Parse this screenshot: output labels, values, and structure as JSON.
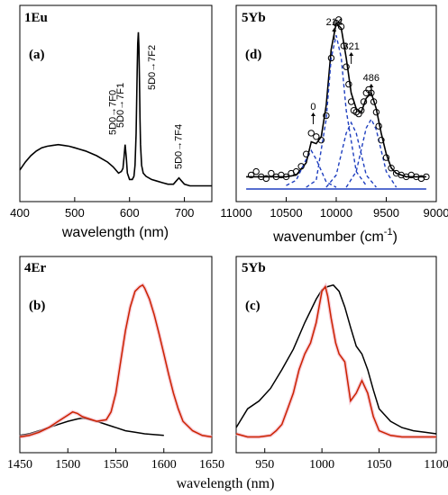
{
  "chart_data": [
    {
      "id": "a",
      "type": "line",
      "title": "1Eu",
      "panel_label": "(a)",
      "xlabel": "wavelength (nm)",
      "xlim": [
        400,
        750
      ],
      "ylim": [
        0,
        1
      ],
      "xticks": [
        400,
        500,
        600,
        700
      ],
      "annotations": [
        {
          "text": "5D0→7F0",
          "x": 578
        },
        {
          "text": "5D0→7F1",
          "x": 592
        },
        {
          "text": "5D0→7F2",
          "x": 650
        },
        {
          "text": "5D0→7F4",
          "x": 698
        }
      ],
      "series": [
        {
          "color": "#000000",
          "x": [
            400,
            410,
            420,
            430,
            440,
            450,
            460,
            470,
            480,
            490,
            500,
            510,
            520,
            530,
            540,
            550,
            560,
            570,
            575,
            580,
            585,
            588,
            590,
            592,
            594,
            596,
            600,
            605,
            608,
            610,
            612,
            614,
            615,
            616,
            617,
            618,
            619,
            620,
            622,
            625,
            630,
            640,
            650,
            660,
            670,
            680,
            685,
            690,
            695,
            700,
            710,
            720,
            730,
            740,
            750
          ],
          "y": [
            0.12,
            0.17,
            0.21,
            0.24,
            0.26,
            0.27,
            0.275,
            0.28,
            0.275,
            0.27,
            0.26,
            0.25,
            0.24,
            0.225,
            0.21,
            0.19,
            0.17,
            0.14,
            0.12,
            0.1,
            0.11,
            0.13,
            0.2,
            0.28,
            0.2,
            0.1,
            0.06,
            0.06,
            0.08,
            0.15,
            0.35,
            0.75,
            0.92,
            0.99,
            0.9,
            0.7,
            0.45,
            0.28,
            0.15,
            0.1,
            0.08,
            0.06,
            0.05,
            0.04,
            0.03,
            0.03,
            0.05,
            0.07,
            0.05,
            0.03,
            0.02,
            0.02,
            0.02,
            0.02,
            0.02
          ]
        }
      ]
    },
    {
      "id": "d",
      "type": "scatter",
      "title": "5Yb",
      "panel_label": "(d)",
      "xlabel": "wavenumber (cm",
      "xlabel_sup": "-1",
      "xlabel_end": ")",
      "xlim": [
        11000,
        9000
      ],
      "ylim": [
        0,
        1
      ],
      "xticks": [
        11000,
        10500,
        10000,
        9500,
        9000
      ],
      "peak_labels": [
        {
          "text": "0",
          "x": 10230
        },
        {
          "text": "214",
          "x": 10020
        },
        {
          "text": "321",
          "x": 9850
        },
        {
          "text": "486",
          "x": 9650
        }
      ],
      "series": [
        {
          "name_shown": false,
          "marker": "open-circle",
          "color": "#000000",
          "x": [
            10850,
            10800,
            10750,
            10700,
            10650,
            10600,
            10550,
            10500,
            10450,
            10400,
            10350,
            10300,
            10250,
            10200,
            10150,
            10100,
            10050,
            10000,
            9975,
            9950,
            9925,
            9900,
            9875,
            9850,
            9825,
            9800,
            9775,
            9750,
            9725,
            9700,
            9675,
            9650,
            9625,
            9600,
            9575,
            9550,
            9500,
            9450,
            9400,
            9350,
            9300,
            9250,
            9200,
            9150,
            9100
          ],
          "y": [
            0.08,
            0.1,
            0.07,
            0.06,
            0.09,
            0.07,
            0.08,
            0.07,
            0.09,
            0.1,
            0.13,
            0.2,
            0.32,
            0.3,
            0.28,
            0.42,
            0.75,
            0.95,
            0.97,
            0.93,
            0.82,
            0.7,
            0.6,
            0.5,
            0.45,
            0.44,
            0.43,
            0.45,
            0.5,
            0.55,
            0.57,
            0.55,
            0.5,
            0.44,
            0.36,
            0.28,
            0.18,
            0.12,
            0.09,
            0.08,
            0.07,
            0.08,
            0.07,
            0.06,
            0.07
          ]
        },
        {
          "name_shown": false,
          "style": "solid",
          "color": "#000000",
          "x": [
            10900,
            10700,
            10500,
            10400,
            10300,
            10250,
            10200,
            10150,
            10100,
            10050,
            10000,
            9950,
            9900,
            9850,
            9800,
            9750,
            9700,
            9650,
            9600,
            9550,
            9500,
            9450,
            9400,
            9300,
            9200,
            9100
          ],
          "y": [
            0.07,
            0.07,
            0.07,
            0.08,
            0.15,
            0.27,
            0.26,
            0.3,
            0.48,
            0.8,
            0.95,
            0.92,
            0.75,
            0.55,
            0.46,
            0.44,
            0.52,
            0.55,
            0.46,
            0.32,
            0.2,
            0.12,
            0.09,
            0.07,
            0.07,
            0.07
          ]
        },
        {
          "name_shown": false,
          "style": "dashed",
          "color": "#1f3fbf",
          "x": [
            10500,
            10400,
            10300,
            10250,
            10200,
            10100,
            10000
          ],
          "y": [
            0.02,
            0.05,
            0.17,
            0.22,
            0.17,
            0.04,
            0.01
          ]
        },
        {
          "name_shown": false,
          "style": "dashed",
          "color": "#1f3fbf",
          "x": [
            10300,
            10200,
            10100,
            10050,
            10000,
            9950,
            9900,
            9800,
            9700
          ],
          "y": [
            0.01,
            0.05,
            0.4,
            0.75,
            0.88,
            0.75,
            0.45,
            0.1,
            0.02
          ]
        },
        {
          "name_shown": false,
          "style": "dashed",
          "color": "#1f3fbf",
          "x": [
            10100,
            10000,
            9900,
            9850,
            9800,
            9700,
            9600
          ],
          "y": [
            0.01,
            0.08,
            0.32,
            0.38,
            0.32,
            0.08,
            0.01
          ]
        },
        {
          "name_shown": false,
          "style": "dashed",
          "color": "#1f3fbf",
          "x": [
            9900,
            9800,
            9700,
            9650,
            9600,
            9500,
            9400
          ],
          "y": [
            0.01,
            0.1,
            0.35,
            0.4,
            0.34,
            0.1,
            0.01
          ]
        },
        {
          "name_shown": false,
          "style": "solid",
          "color": "#1f3fbf",
          "x": [
            10900,
            9100
          ],
          "y": [
            0.0,
            0.0
          ]
        }
      ]
    },
    {
      "id": "b",
      "type": "line",
      "title": "4Er",
      "panel_label": "(b)",
      "xlabel": "",
      "xlim": [
        1450,
        1650
      ],
      "ylim": [
        0,
        1
      ],
      "xticks": [
        1450,
        1500,
        1550,
        1600,
        1650
      ],
      "series": [
        {
          "name_shown": false,
          "color": "#000000",
          "x": [
            1450,
            1460,
            1470,
            1480,
            1490,
            1500,
            1510,
            1515,
            1520,
            1530,
            1540,
            1550,
            1560,
            1570,
            1580,
            1590,
            1600
          ],
          "y": [
            0.03,
            0.04,
            0.06,
            0.08,
            0.1,
            0.12,
            0.135,
            0.14,
            0.135,
            0.12,
            0.1,
            0.08,
            0.06,
            0.05,
            0.04,
            0.035,
            0.03
          ]
        },
        {
          "name_shown": false,
          "color": "#cc2200",
          "x": [
            1450,
            1460,
            1470,
            1480,
            1490,
            1500,
            1505,
            1510,
            1515,
            1520,
            1530,
            1540,
            1545,
            1550,
            1555,
            1560,
            1565,
            1570,
            1575,
            1578,
            1580,
            1585,
            1590,
            1595,
            1600,
            1605,
            1610,
            1615,
            1620,
            1630,
            1640,
            1650
          ],
          "y": [
            0.02,
            0.03,
            0.05,
            0.08,
            0.12,
            0.16,
            0.18,
            0.17,
            0.15,
            0.14,
            0.12,
            0.13,
            0.18,
            0.3,
            0.5,
            0.7,
            0.85,
            0.95,
            0.98,
            0.99,
            0.97,
            0.9,
            0.8,
            0.68,
            0.55,
            0.42,
            0.3,
            0.2,
            0.12,
            0.06,
            0.03,
            0.02
          ]
        }
      ]
    },
    {
      "id": "c",
      "type": "line",
      "title": "5Yb",
      "panel_label": "(c)",
      "xlabel": "",
      "xlim": [
        925,
        1100
      ],
      "ylim": [
        0,
        1
      ],
      "xticks": [
        950,
        1000,
        1050,
        1100
      ],
      "series": [
        {
          "name_shown": false,
          "color": "#000000",
          "x": [
            925,
            935,
            945,
            955,
            965,
            975,
            985,
            995,
            1000,
            1005,
            1010,
            1015,
            1020,
            1025,
            1030,
            1035,
            1040,
            1045,
            1050,
            1060,
            1070,
            1080,
            1090,
            1100
          ],
          "y": [
            0.08,
            0.2,
            0.25,
            0.33,
            0.45,
            0.58,
            0.75,
            0.9,
            0.96,
            0.98,
            0.99,
            0.95,
            0.85,
            0.72,
            0.6,
            0.55,
            0.45,
            0.32,
            0.2,
            0.12,
            0.08,
            0.06,
            0.05,
            0.04
          ]
        },
        {
          "name_shown": false,
          "color": "#cc2200",
          "x": [
            925,
            935,
            945,
            955,
            960,
            965,
            970,
            975,
            980,
            985,
            990,
            995,
            1000,
            1003,
            1005,
            1008,
            1012,
            1015,
            1020,
            1025,
            1030,
            1035,
            1040,
            1045,
            1050,
            1060,
            1070,
            1080,
            1090,
            1100
          ],
          "y": [
            0.04,
            0.02,
            0.02,
            0.03,
            0.06,
            0.1,
            0.2,
            0.3,
            0.45,
            0.55,
            0.62,
            0.75,
            0.95,
            0.98,
            0.92,
            0.78,
            0.62,
            0.55,
            0.5,
            0.25,
            0.3,
            0.38,
            0.3,
            0.15,
            0.06,
            0.03,
            0.02,
            0.02,
            0.02,
            0.02
          ]
        }
      ]
    }
  ],
  "shared_xlabel": "wavelength (nm)"
}
